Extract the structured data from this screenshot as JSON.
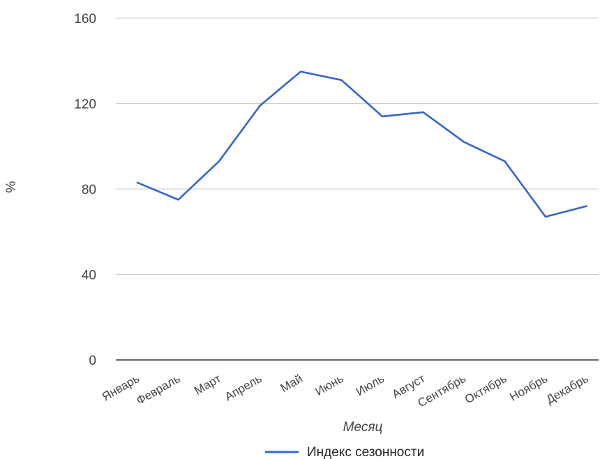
{
  "chart_data": {
    "type": "line",
    "categories": [
      "Январь",
      "Февраль",
      "Март",
      "Апрель",
      "Май",
      "Июнь",
      "Июль",
      "Август",
      "Сентябрь",
      "Октябрь",
      "Ноябрь",
      "Декабрь"
    ],
    "series": [
      {
        "name": "Индекс сезонности",
        "color": "#3366cc",
        "values": [
          83,
          75,
          93,
          119,
          135,
          131,
          114,
          116,
          102,
          93,
          67,
          72
        ]
      }
    ],
    "xlabel": "Месяц",
    "ylabel": "%",
    "ylim": [
      0,
      160
    ],
    "yticks": [
      0,
      40,
      80,
      120,
      160
    ],
    "grid": true,
    "legend": "bottom"
  }
}
